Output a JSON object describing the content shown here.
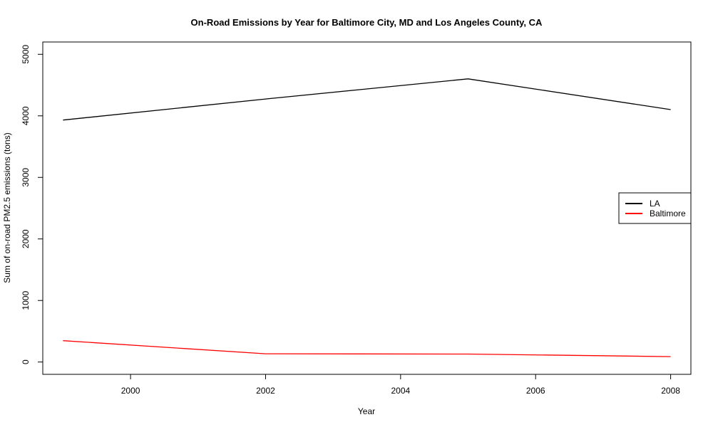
{
  "chart_data": {
    "type": "line",
    "title": "On-Road Emissions by Year for Baltimore City, MD and Los Angeles County, CA",
    "xlabel": "Year",
    "ylabel": "Sum of on-road PM2.5 emissions (tons)",
    "x": [
      1999,
      2002,
      2005,
      2008
    ],
    "xlim": [
      1998.7,
      2008.3
    ],
    "ylim": [
      -200,
      5200
    ],
    "xticks": [
      2000,
      2002,
      2004,
      2006,
      2008
    ],
    "yticks": [
      0,
      1000,
      2000,
      3000,
      4000,
      5000
    ],
    "grid": false,
    "legend_position": "right",
    "series": [
      {
        "name": "LA",
        "color": "#000000",
        "values": [
          3931,
          4274,
          4601,
          4101
        ]
      },
      {
        "name": "Baltimore",
        "color": "#ff0000",
        "values": [
          347,
          134,
          130,
          88
        ]
      }
    ]
  }
}
